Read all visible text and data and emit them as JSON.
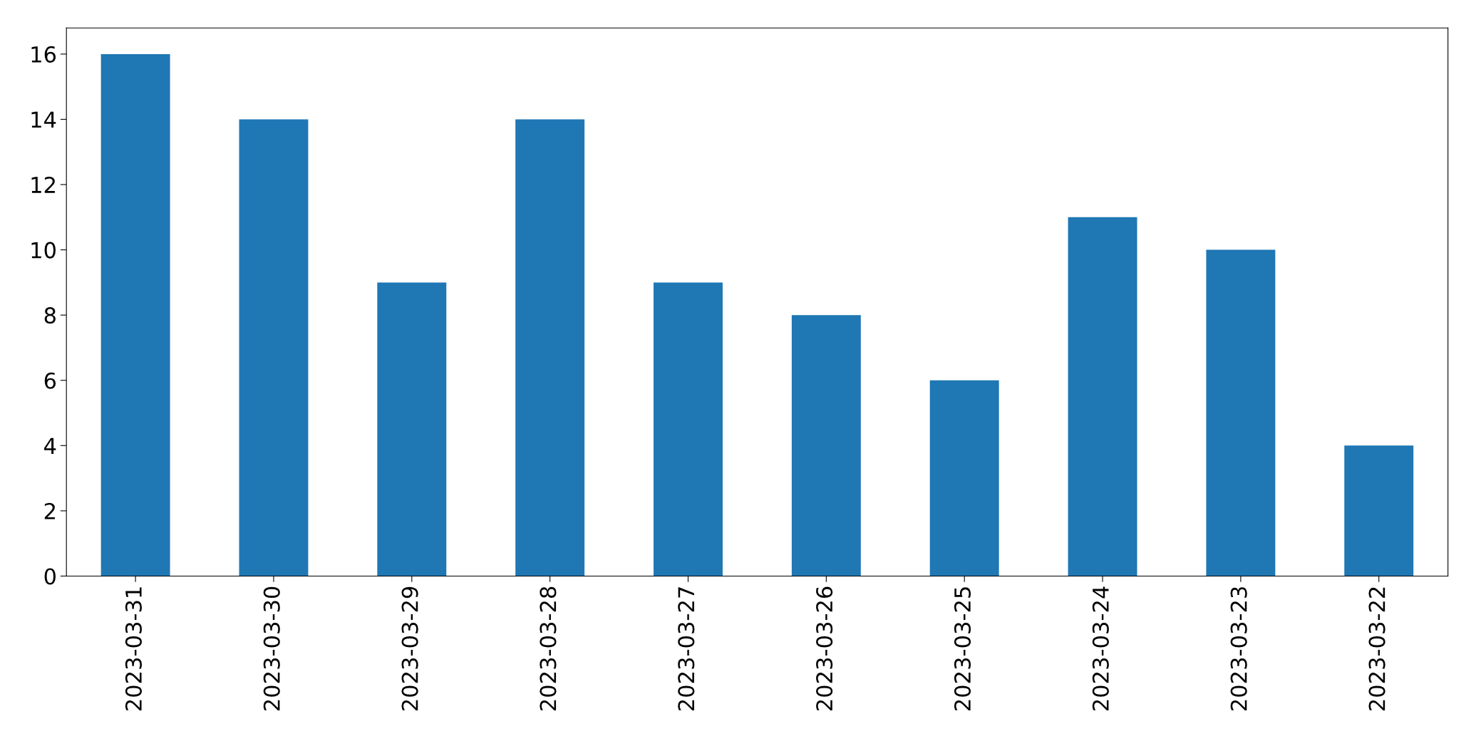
{
  "chart_data": {
    "type": "bar",
    "categories": [
      "2023-03-31",
      "2023-03-30",
      "2023-03-29",
      "2023-03-28",
      "2023-03-27",
      "2023-03-26",
      "2023-03-25",
      "2023-03-24",
      "2023-03-23",
      "2023-03-22"
    ],
    "values": [
      16,
      14,
      9,
      14,
      9,
      8,
      6,
      11,
      10,
      4
    ],
    "color": "#1f77b4",
    "ylim": [
      0,
      16.8
    ],
    "yticks": [
      0,
      2,
      4,
      6,
      8,
      10,
      12,
      14,
      16
    ],
    "grid": false,
    "legend": false
  }
}
